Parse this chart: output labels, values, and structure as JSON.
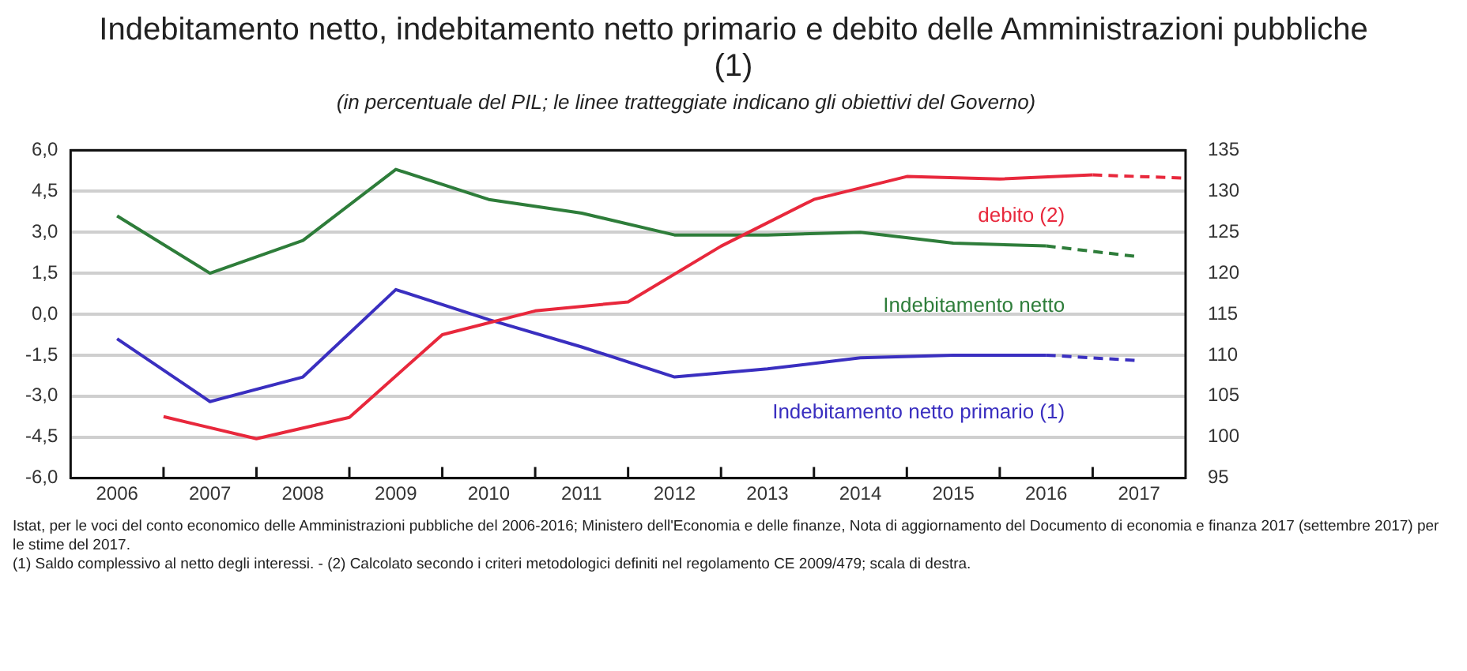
{
  "chart_data": {
    "type": "line",
    "title": "Indebitamento netto, indebitamento netto primario e debito delle Amministrazioni pubbliche (1)",
    "subtitle": "(in percentuale del PIL; le linee tratteggiate indicano gli obiettivi del Governo)",
    "xlim": [
      2005.5,
      2017.5
    ],
    "xticks": [
      {
        "value": 2006,
        "label": "2006"
      },
      {
        "value": 2007,
        "label": "2007"
      },
      {
        "value": 2008,
        "label": "2008"
      },
      {
        "value": 2009,
        "label": "2009"
      },
      {
        "value": 2010,
        "label": "2010"
      },
      {
        "value": 2011,
        "label": "2011"
      },
      {
        "value": 2012,
        "label": "2012"
      },
      {
        "value": 2013,
        "label": "2013"
      },
      {
        "value": 2014,
        "label": "2014"
      },
      {
        "value": 2015,
        "label": "2015"
      },
      {
        "value": 2016,
        "label": "2016"
      },
      {
        "value": 2017,
        "label": "2017"
      },
      {
        "value": 2006.5,
        "label": null
      },
      {
        "value": 2007.5,
        "label": null
      },
      {
        "value": 2008.5,
        "label": null
      },
      {
        "value": 2009.5,
        "label": null
      },
      {
        "value": 2010.5,
        "label": null
      },
      {
        "value": 2011.5,
        "label": null
      },
      {
        "value": 2012.5,
        "label": null
      },
      {
        "value": 2013.5,
        "label": null
      },
      {
        "value": 2014.5,
        "label": null
      },
      {
        "value": 2015.5,
        "label": null
      },
      {
        "value": 2016.5,
        "label": null
      }
    ],
    "ylim": [
      -6,
      6
    ],
    "yticks": [
      {
        "value": -6,
        "label": "-6,0"
      },
      {
        "value": -4.5,
        "label": "-4,5"
      },
      {
        "value": -3,
        "label": "-3,0"
      },
      {
        "value": -1.5,
        "label": "-1,5"
      },
      {
        "value": 0,
        "label": "0,0"
      },
      {
        "value": 1.5,
        "label": "1,5"
      },
      {
        "value": 3,
        "label": "3,0"
      },
      {
        "value": 4.5,
        "label": "4,5"
      },
      {
        "value": 6,
        "label": "6,0"
      }
    ],
    "y2lim": [
      95,
      135
    ],
    "y2ticks": [
      95,
      100,
      105,
      110,
      115,
      120,
      125,
      130,
      135
    ],
    "grid": "y",
    "legend": false,
    "marker": "none",
    "series": [
      {
        "name": "debito (2)",
        "color": "#e8283c",
        "axis": "y2",
        "x": [
          2006.5,
          2007.5,
          2008.5,
          2009.5,
          2010.5,
          2011.5,
          2012.5,
          2013.5,
          2014.5,
          2015.5,
          2016.5
        ],
        "values": [
          102.5,
          99.8,
          102.4,
          112.5,
          115.4,
          116.5,
          123.3,
          129.0,
          131.8,
          131.5,
          132.0
        ]
      },
      {
        "color": "#e8283c",
        "axis": "y2",
        "line_style": "dashed",
        "x": [
          2016.5,
          2017.5
        ],
        "values": [
          132.0,
          131.6
        ]
      },
      {
        "name": "Indebitamento netto",
        "color": "#2e7d3a",
        "x": [
          2006,
          2007,
          2008,
          2009,
          2010,
          2011,
          2012,
          2013,
          2014,
          2015,
          2016
        ],
        "values": [
          3.6,
          1.5,
          2.7,
          5.3,
          4.2,
          3.7,
          2.9,
          2.9,
          3.0,
          2.6,
          2.5
        ]
      },
      {
        "color": "#2e7d3a",
        "line_style": "dashed",
        "x": [
          2016,
          2017
        ],
        "values": [
          2.5,
          2.1
        ]
      },
      {
        "name": "Indebitamento netto primario (1)",
        "color": "#3a2fc0",
        "x": [
          2006,
          2007,
          2008,
          2009,
          2010,
          2011,
          2012,
          2013,
          2014,
          2015,
          2016
        ],
        "values": [
          -0.9,
          -3.2,
          -2.3,
          0.9,
          -0.2,
          -1.2,
          -2.3,
          -2.0,
          -1.6,
          -1.5,
          -1.5
        ]
      },
      {
        "color": "#3a2fc0",
        "line_style": "dashed",
        "x": [
          2016,
          2017
        ],
        "values": [
          -1.5,
          -1.7
        ]
      }
    ],
    "annotations": [
      "Istat, per le voci del conto economico delle Amministrazioni pubbliche del 2006-2016; Ministero dell'Economia e delle finanze, Nota di aggiornamento del Documento di economia e finanza 2017 (settembre 2017) per le stime del 2017.",
      "(1) Saldo complessivo al netto degli interessi. - (2) Calcolato secondo i criteri metodologici definiti nel regolamento CE 2009/479; scala di destra."
    ]
  }
}
